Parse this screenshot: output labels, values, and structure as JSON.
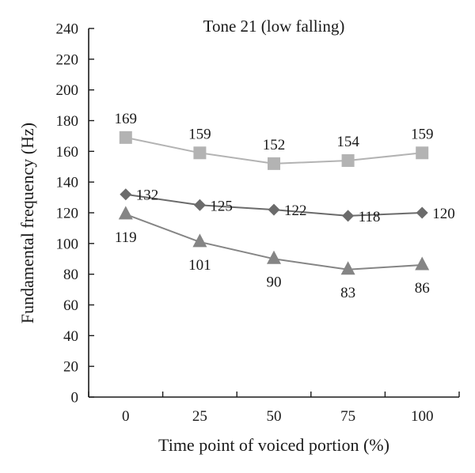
{
  "chart_data": {
    "type": "line",
    "title": "Tone 21 (low falling)",
    "xlabel": "Time point of voiced portion (%)",
    "ylabel": "Fundamental frequency (Hz)",
    "x": [
      0,
      25,
      50,
      75,
      100
    ],
    "x_tick_labels": [
      "0",
      "25",
      "50",
      "75",
      "100"
    ],
    "ylim": [
      0,
      240
    ],
    "y_ticks": [
      0,
      20,
      40,
      60,
      80,
      100,
      120,
      140,
      160,
      180,
      200,
      220,
      240
    ],
    "grid": false,
    "legend": "none",
    "series": [
      {
        "values": [
          169,
          159,
          152,
          154,
          159
        ],
        "marker": "square",
        "color": "#b3b3b3",
        "label_position": "above"
      },
      {
        "values": [
          132,
          125,
          122,
          118,
          120
        ],
        "marker": "diamond",
        "color": "#6b6b6b",
        "label_position": "right"
      },
      {
        "values": [
          119,
          101,
          90,
          83,
          86
        ],
        "marker": "triangle",
        "color": "#858585",
        "label_position": "below"
      }
    ]
  }
}
